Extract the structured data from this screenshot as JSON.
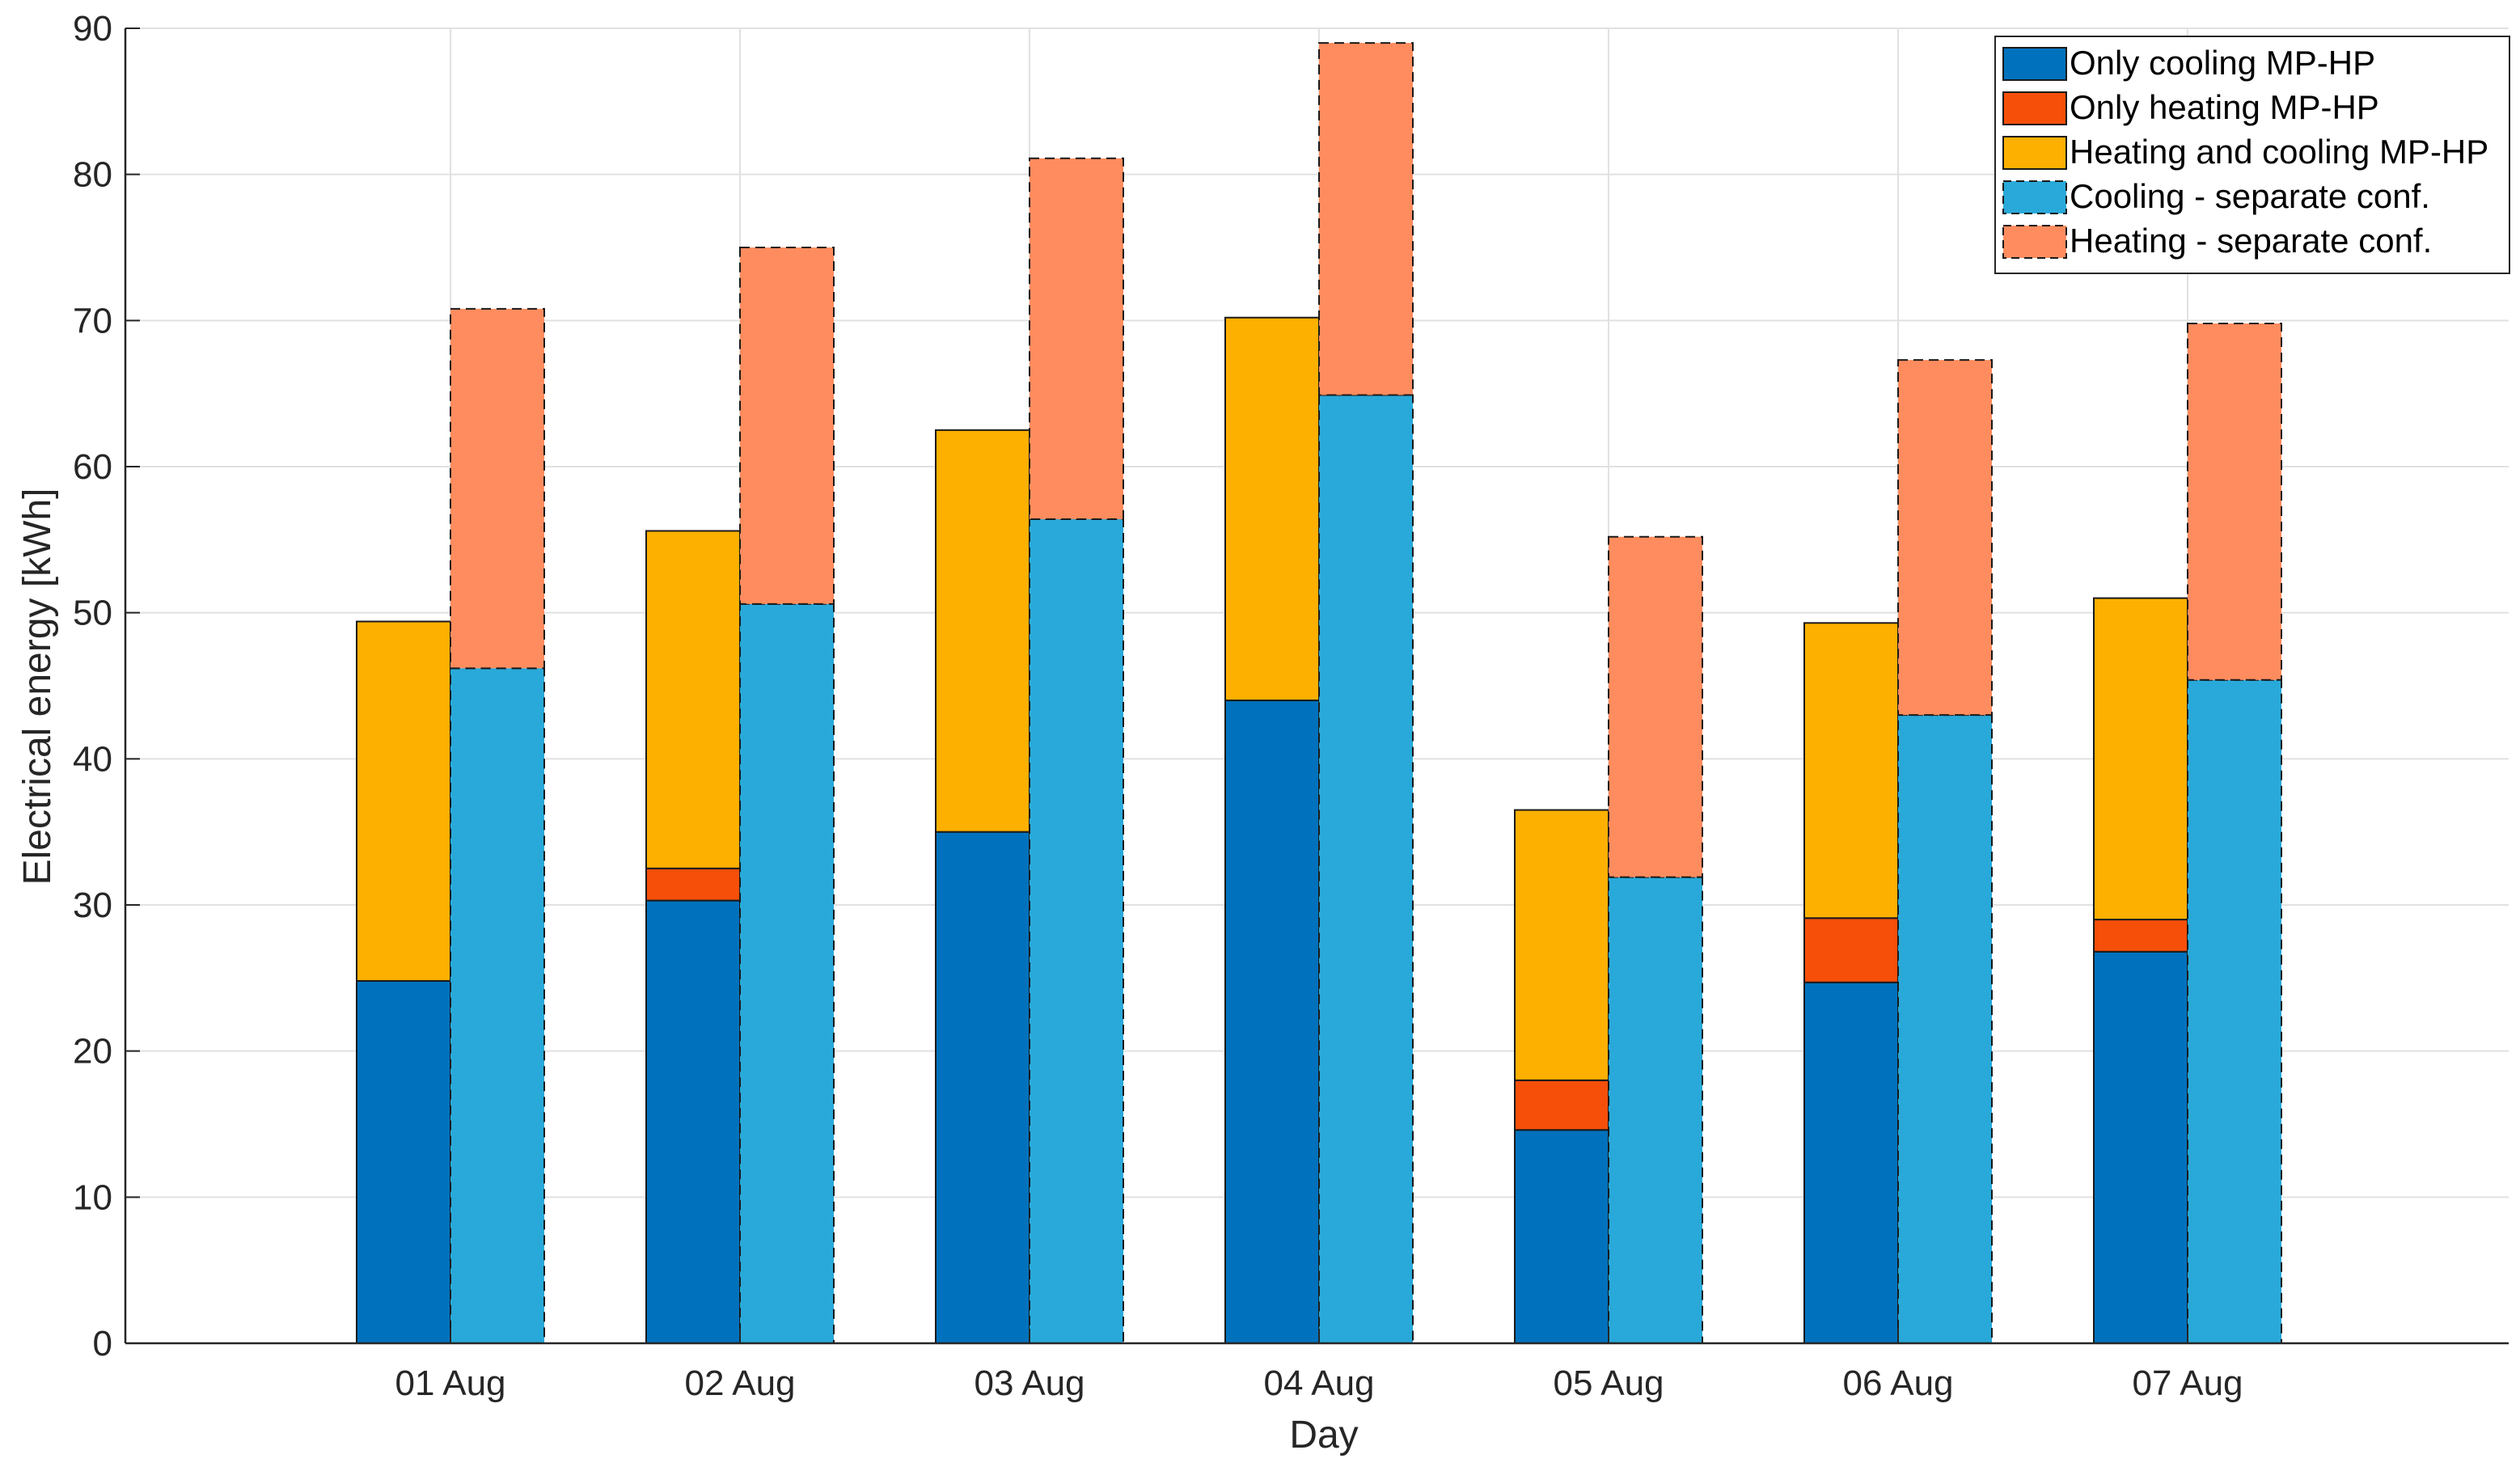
{
  "chart_data": {
    "type": "bar",
    "xlabel": "Day",
    "ylabel": "Electrical energy [kWh]",
    "ylim": [
      0,
      90
    ],
    "yticks": [
      0,
      10,
      20,
      30,
      40,
      50,
      60,
      70,
      80,
      90
    ],
    "grid": true,
    "legend_position": "top-right",
    "categories": [
      "01 Aug",
      "02 Aug",
      "03 Aug",
      "04 Aug",
      "05 Aug",
      "06 Aug",
      "07 Aug"
    ],
    "stacks": [
      {
        "stack": "MP-HP",
        "series": [
          {
            "name": "Only cooling MP-HP",
            "color": "#0072BD",
            "values": [
              24.8,
              30.3,
              35.0,
              44.0,
              14.6,
              24.7,
              26.8
            ]
          },
          {
            "name": "Only heating MP-HP",
            "color": "#F64F0A",
            "values": [
              0.0,
              2.2,
              0.0,
              0.0,
              3.4,
              4.4,
              2.2
            ]
          },
          {
            "name": "Heating and cooling MP-HP",
            "color": "#FDB000",
            "values": [
              24.6,
              23.1,
              27.5,
              26.2,
              18.5,
              20.2,
              22.0
            ]
          }
        ]
      },
      {
        "stack": "separate",
        "dashed": true,
        "series": [
          {
            "name": "Cooling - separate conf.",
            "color": "#29A9D9",
            "values": [
              46.2,
              50.6,
              56.4,
              64.9,
              31.9,
              43.0,
              45.4
            ]
          },
          {
            "name": "Heating - separate conf.",
            "color": "#FF8C5E",
            "values": [
              24.6,
              24.4,
              24.7,
              24.1,
              23.3,
              24.3,
              24.4
            ]
          }
        ]
      }
    ]
  }
}
